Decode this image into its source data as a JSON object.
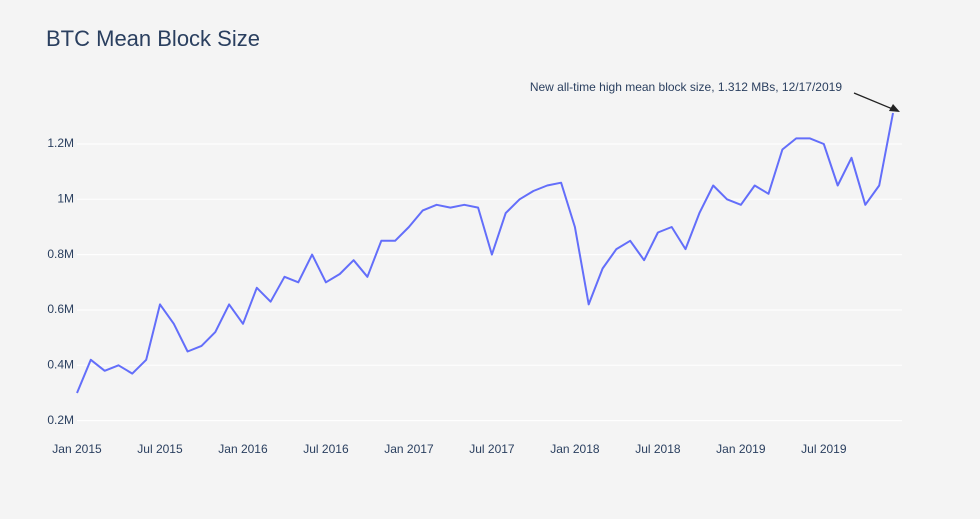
{
  "chart_data": {
    "type": "line",
    "title": "BTC Mean Block Size",
    "annotation": "New all-time high mean block size, 1.312 MBs, 12/17/2019",
    "x": [
      "2015-01",
      "2015-02",
      "2015-03",
      "2015-04",
      "2015-05",
      "2015-06",
      "2015-07",
      "2015-08",
      "2015-09",
      "2015-10",
      "2015-11",
      "2015-12",
      "2016-01",
      "2016-02",
      "2016-03",
      "2016-04",
      "2016-05",
      "2016-06",
      "2016-07",
      "2016-08",
      "2016-09",
      "2016-10",
      "2016-11",
      "2016-12",
      "2017-01",
      "2017-02",
      "2017-03",
      "2017-04",
      "2017-05",
      "2017-06",
      "2017-07",
      "2017-08",
      "2017-09",
      "2017-10",
      "2017-11",
      "2017-12",
      "2018-01",
      "2018-02",
      "2018-03",
      "2018-04",
      "2018-05",
      "2018-06",
      "2018-07",
      "2018-08",
      "2018-09",
      "2018-10",
      "2018-11",
      "2018-12",
      "2019-01",
      "2019-02",
      "2019-03",
      "2019-04",
      "2019-05",
      "2019-06",
      "2019-07",
      "2019-08",
      "2019-09",
      "2019-10",
      "2019-11",
      "2019-12"
    ],
    "series": [
      {
        "name": "Mean Block Size",
        "color": "#636efa",
        "values": [
          300000,
          420000,
          380000,
          400000,
          370000,
          420000,
          620000,
          550000,
          450000,
          470000,
          520000,
          620000,
          550000,
          680000,
          630000,
          720000,
          700000,
          800000,
          700000,
          730000,
          780000,
          720000,
          850000,
          850000,
          900000,
          960000,
          980000,
          970000,
          980000,
          970000,
          800000,
          950000,
          1000000,
          1030000,
          1050000,
          1060000,
          900000,
          620000,
          750000,
          820000,
          850000,
          780000,
          880000,
          900000,
          820000,
          950000,
          1050000,
          1000000,
          980000,
          1050000,
          1020000,
          1180000,
          1220000,
          1220000,
          1200000,
          1050000,
          1150000,
          980000,
          1050000,
          1312000
        ]
      }
    ],
    "xlim": [
      "2015-01",
      "2019-12"
    ],
    "xticks": [
      {
        "value": "2015-01",
        "label": "Jan 2015"
      },
      {
        "value": "2015-07",
        "label": "Jul 2015"
      },
      {
        "value": "2016-01",
        "label": "Jan 2016"
      },
      {
        "value": "2016-07",
        "label": "Jul 2016"
      },
      {
        "value": "2017-01",
        "label": "Jan 2017"
      },
      {
        "value": "2017-07",
        "label": "Jul 2017"
      },
      {
        "value": "2018-01",
        "label": "Jan 2018"
      },
      {
        "value": "2018-07",
        "label": "Jul 2018"
      },
      {
        "value": "2019-01",
        "label": "Jan 2019"
      },
      {
        "value": "2019-07",
        "label": "Jul 2019"
      }
    ],
    "ylim": [
      130000,
      1330000
    ],
    "yticks": [
      {
        "value": 200000,
        "label": "0.2M"
      },
      {
        "value": 400000,
        "label": "0.4M"
      },
      {
        "value": 600000,
        "label": "0.6M"
      },
      {
        "value": 800000,
        "label": "0.8M"
      },
      {
        "value": 1000000,
        "label": "1M"
      },
      {
        "value": 1200000,
        "label": "1.2M"
      }
    ],
    "grid": true
  }
}
